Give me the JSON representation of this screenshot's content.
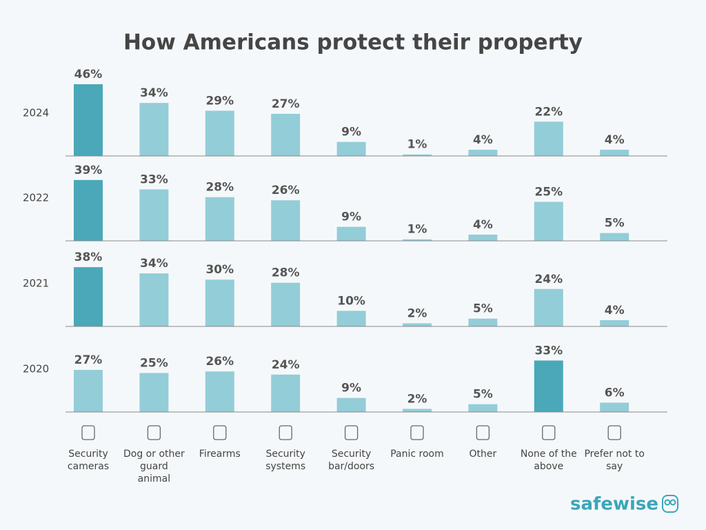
{
  "chart_data": {
    "type": "bar",
    "title": "How Americans protect their property",
    "categories": [
      "Security cameras",
      "Dog or other guard animal",
      "Firearms",
      "Security systems",
      "Security bar/doors",
      "Panic room",
      "Other",
      "None of the above",
      "Prefer not to say"
    ],
    "series": [
      {
        "name": "2024",
        "values": [
          46,
          34,
          29,
          27,
          9,
          1,
          4,
          22,
          4
        ],
        "value_labels": [
          "46%",
          "34%",
          "29%",
          "27%",
          "9%",
          "1%",
          "4%",
          "22%",
          "4%"
        ]
      },
      {
        "name": "2022",
        "values": [
          39,
          33,
          28,
          26,
          9,
          1,
          4,
          25,
          5
        ],
        "value_labels": [
          "39%",
          "33%",
          "28%",
          "26%",
          "9%",
          "1%",
          "4%",
          "25%",
          "5%"
        ]
      },
      {
        "name": "2021",
        "values": [
          38,
          34,
          30,
          28,
          10,
          2,
          5,
          24,
          4
        ],
        "value_labels": [
          "38%",
          "34%",
          "30%",
          "28%",
          "10%",
          "2%",
          "5%",
          "24%",
          "4%"
        ]
      },
      {
        "name": "2020",
        "values": [
          27,
          25,
          26,
          24,
          9,
          2,
          5,
          33,
          6
        ],
        "value_labels": [
          "27%",
          "25%",
          "26%",
          "24%",
          "9%",
          "2%",
          "5%",
          "33%",
          "6%"
        ]
      }
    ],
    "color": "#93cdd8",
    "highlight_color": "#4aa8b9",
    "ylim": [
      0,
      50
    ]
  },
  "logo": "safewise"
}
